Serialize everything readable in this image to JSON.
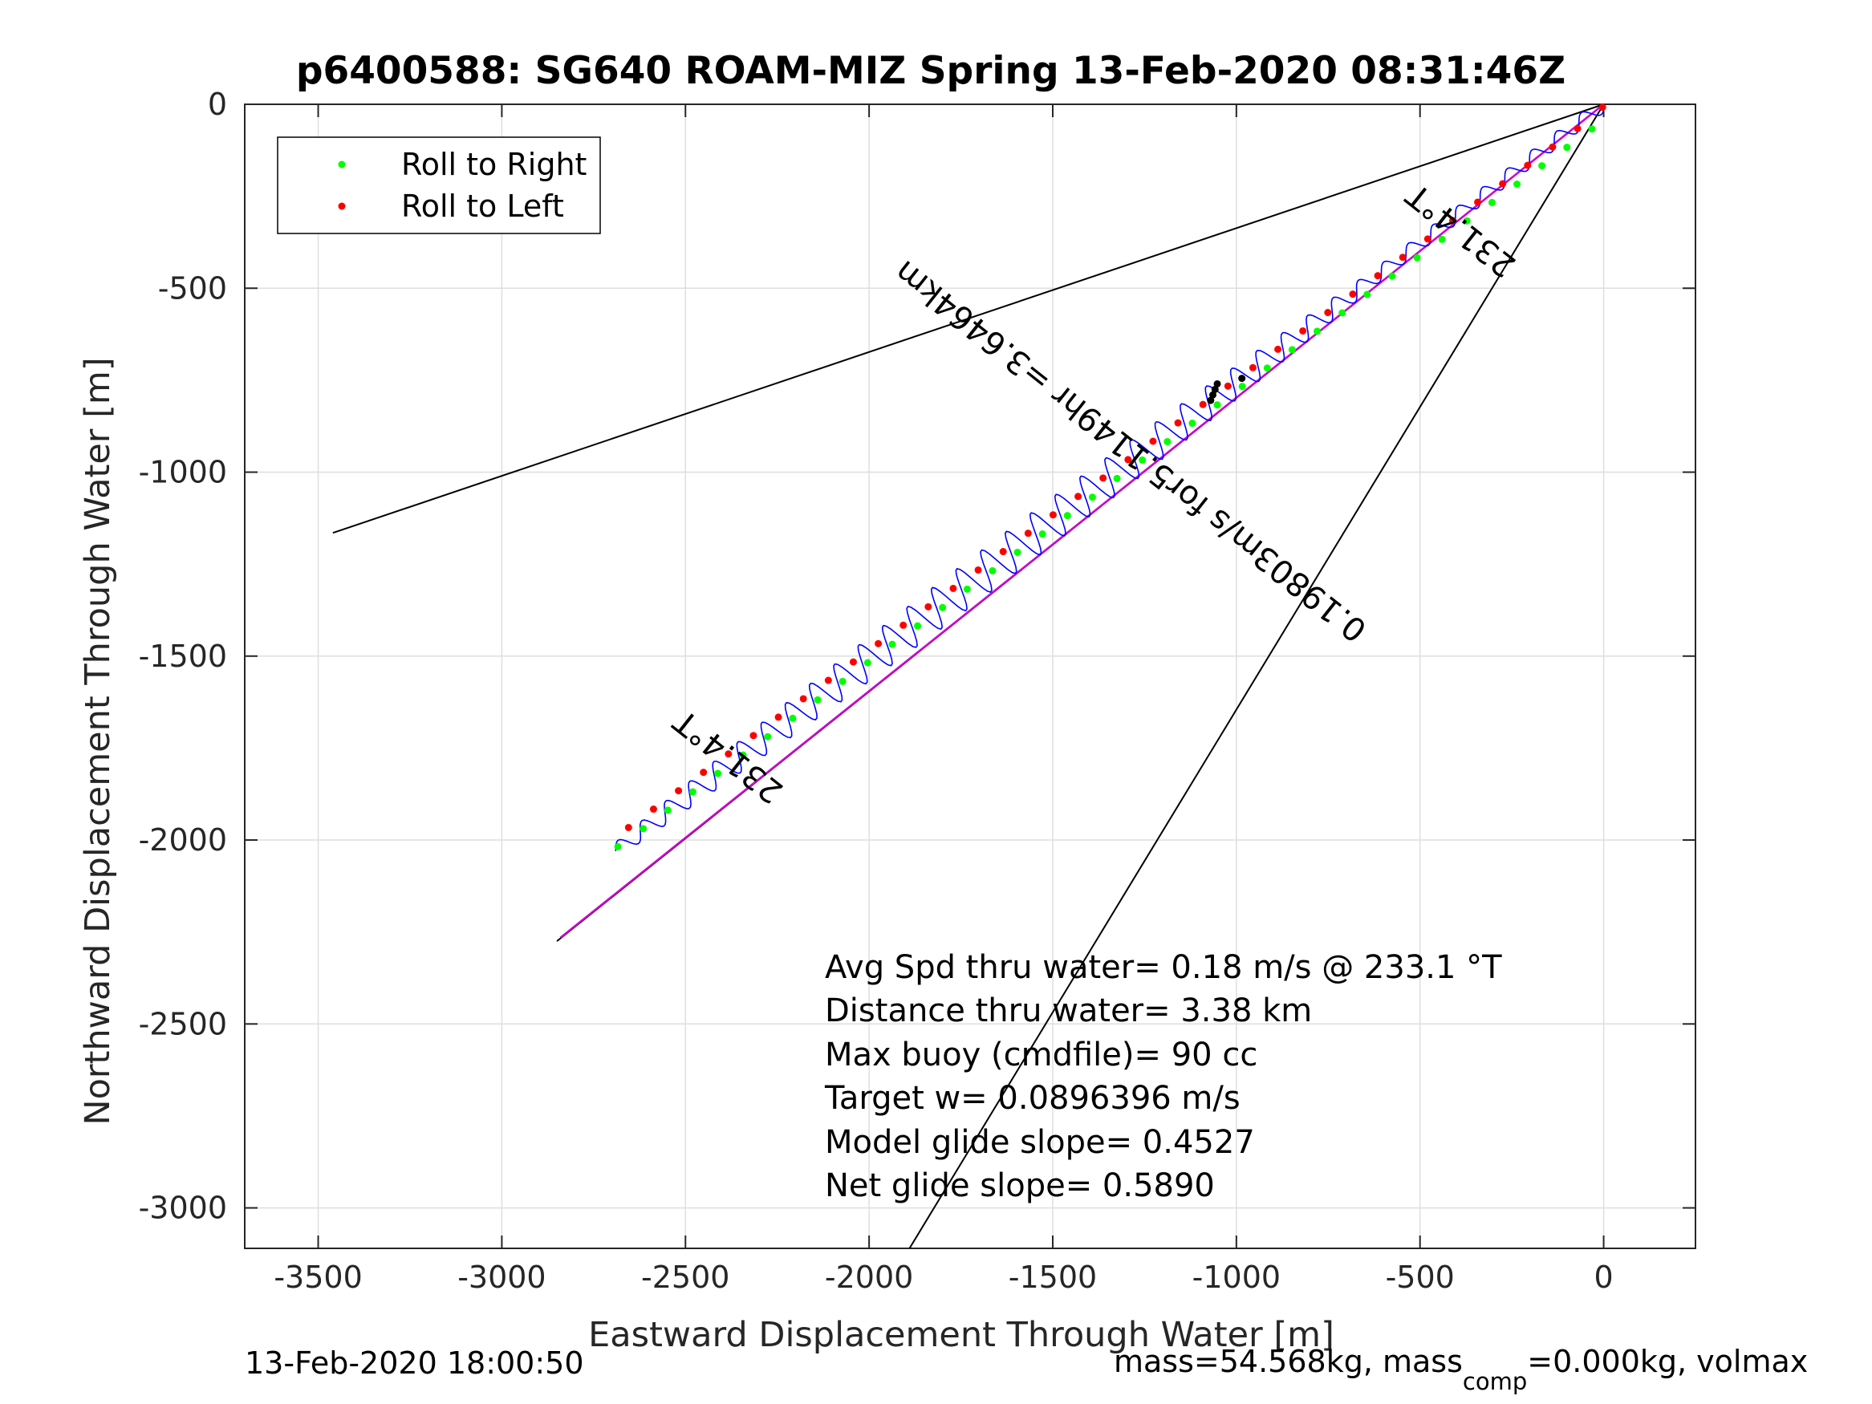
{
  "chart_data": {
    "type": "scatter",
    "title": "p6400588: SG640 ROAM-MIZ Spring 13-Feb-2020 08:31:46Z",
    "xlabel": "Eastward Displacement Through Water [m]",
    "ylabel": "Northward Displacement Through Water [m]",
    "xlim": [
      -3700,
      250
    ],
    "ylim": [
      -3110,
      0
    ],
    "xticks": [
      -3500,
      -3000,
      -2500,
      -2000,
      -1500,
      -1000,
      -500,
      0
    ],
    "yticks": [
      0,
      -500,
      -1000,
      -1500,
      -2000,
      -2500,
      -3000
    ],
    "xtick_labels": [
      "-3500",
      "-3000",
      "-2500",
      "-2000",
      "-1500",
      "-1000",
      "-500",
      "0"
    ],
    "ytick_labels": [
      "0",
      "-500",
      "-1000",
      "-1500",
      "-2000",
      "-2500",
      "-3000"
    ],
    "grid": true,
    "legend_position": "top-left",
    "legend": [
      {
        "label": "Roll to Right",
        "color": "#00ff00"
      },
      {
        "label": "Roll to Left",
        "color": "#ff0000"
      }
    ],
    "series": [
      {
        "kind": "line",
        "color": "#000000",
        "x": [
          0,
          -3460
        ],
        "y": [
          0,
          -1165
        ]
      },
      {
        "kind": "line",
        "color": "#000000",
        "x": [
          0,
          -1890
        ],
        "y": [
          0,
          -3110
        ]
      },
      {
        "kind": "line",
        "color": "#000000",
        "x": [
          0,
          -2850
        ],
        "y": [
          0,
          -2275
        ]
      },
      {
        "kind": "line",
        "color": "#cc00cc",
        "x": [
          0,
          -2840
        ],
        "y": [
          0,
          -2265
        ]
      },
      {
        "kind": "track",
        "color": "#0000ff",
        "start": [
          -2690,
          -2030
        ],
        "end": [
          0,
          0
        ],
        "cycles": 40,
        "amplitude": 55
      },
      {
        "kind": "points",
        "name": "Roll to Right",
        "color": "#00ff00",
        "x": [
          -2684,
          -2615,
          -2548,
          -2480,
          -2412,
          -2343,
          -2276,
          -2208,
          -2140,
          -2072,
          -2004,
          -1937,
          -1868,
          -1800,
          -1733,
          -1664,
          -1596,
          -1528,
          -1460,
          -1392,
          -1325,
          -1256,
          -1188,
          -1120,
          -1052,
          -984,
          -916,
          -848,
          -780,
          -712,
          -644,
          -576,
          -508,
          -440,
          -372,
          -304,
          -236,
          -168,
          -100,
          -32
        ],
        "y": [
          -2018,
          -1969,
          -1919,
          -1869,
          -1819,
          -1769,
          -1719,
          -1669,
          -1619,
          -1569,
          -1518,
          -1468,
          -1418,
          -1368,
          -1318,
          -1268,
          -1218,
          -1168,
          -1118,
          -1068,
          -1017,
          -967,
          -917,
          -867,
          -817,
          -767,
          -717,
          -667,
          -617,
          -567,
          -517,
          -467,
          -417,
          -367,
          -317,
          -267,
          -217,
          -167,
          -117,
          -67
        ]
      },
      {
        "kind": "points",
        "name": "Roll to Left",
        "color": "#ff0000",
        "x": [
          -2655,
          -2587,
          -2519,
          -2451,
          -2383,
          -2315,
          -2247,
          -2179,
          -2111,
          -2043,
          -1975,
          -1907,
          -1839,
          -1771,
          -1703,
          -1635,
          -1567,
          -1499,
          -1431,
          -1363,
          -1295,
          -1227,
          -1159,
          -1091,
          -1023,
          -955,
          -887,
          -819,
          -751,
          -683,
          -615,
          -547,
          -479,
          -411,
          -343,
          -275,
          -207,
          -139,
          -71,
          -3
        ],
        "y": [
          -1966,
          -1916,
          -1866,
          -1816,
          -1766,
          -1716,
          -1666,
          -1616,
          -1566,
          -1516,
          -1466,
          -1416,
          -1366,
          -1316,
          -1266,
          -1216,
          -1166,
          -1116,
          -1066,
          -1016,
          -966,
          -916,
          -866,
          -816,
          -766,
          -716,
          -666,
          -616,
          -566,
          -516,
          -466,
          -416,
          -366,
          -316,
          -266,
          -216,
          -166,
          -116,
          -66,
          -8
        ]
      },
      {
        "kind": "points",
        "color": "#000000",
        "x": [
          -1070,
          -1064,
          -1058,
          -1052,
          -985
        ],
        "y": [
          -805,
          -790,
          -775,
          -760,
          -745
        ]
      }
    ],
    "annotations": [
      {
        "text": "0.19803m/s for5.1149hr =3.6464km",
        "x": -1270,
        "y": -920,
        "angle": 218.4
      },
      {
        "text": "231.4°T",
        "x": -370,
        "y": -320,
        "angle": 218.4
      },
      {
        "text": "231.4°T",
        "x": -2365,
        "y": -1750,
        "angle": 218.4
      }
    ],
    "info_lines": [
      "Avg Spd thru water=  0.18 m/s @ 233.1 °T",
      "Distance thru water=  3.38 km",
      "Max buoy (cmdfile)= 90 cc",
      "Target w= 0.0896396 m/s",
      "Model glide slope= 0.4527",
      "Net glide slope= 0.5890"
    ]
  },
  "footer": {
    "left": "13-Feb-2020 18:00:50",
    "right_main": "mass=54.568kg, mass",
    "right_sub": "comp",
    "right_tail": "=0.000kg, volmax"
  }
}
